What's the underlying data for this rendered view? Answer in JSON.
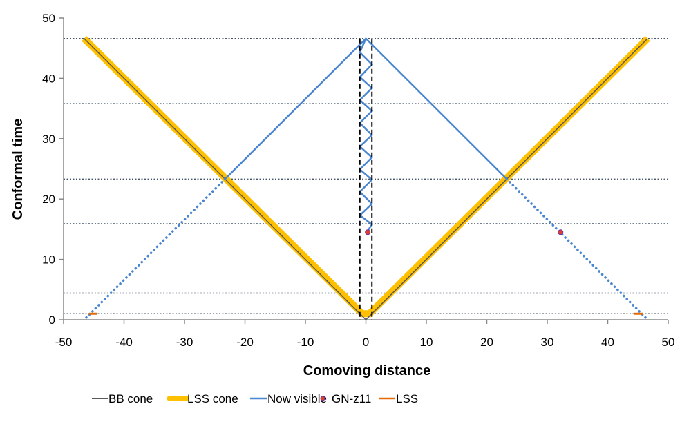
{
  "chart_data": {
    "type": "line",
    "title": "",
    "xlabel": "Comoving distance",
    "ylabel": "Conformal time",
    "xlim": [
      -50,
      50
    ],
    "ylim": [
      0,
      50
    ],
    "xticks": [
      -50,
      -40,
      -30,
      -20,
      -10,
      0,
      10,
      20,
      30,
      40,
      50
    ],
    "yticks": [
      0,
      10,
      20,
      30,
      40,
      50
    ],
    "grid": "none",
    "legend_position": "bottom",
    "horizontal_reference_lines": {
      "style": "dotted",
      "color": "#44546A",
      "y": [
        46.6,
        35.8,
        23.3,
        15.9,
        4.4,
        1.0
      ]
    },
    "vertical_reference_lines": {
      "style": "dashed",
      "color": "#000000",
      "x": [
        -1,
        1
      ]
    },
    "series": [
      {
        "name": "BB cone",
        "color": "#595959",
        "style": "solid",
        "x": [
          -46.6,
          0,
          46.6
        ],
        "y": [
          46.6,
          0,
          46.6
        ]
      },
      {
        "name": "LSS cone",
        "color": "#FFC000",
        "style": "thick",
        "x": [
          -46.6,
          -0.6,
          0.6,
          46.6
        ],
        "y": [
          46.6,
          1.0,
          1.0,
          46.6
        ]
      },
      {
        "name": "Now visible",
        "color": "#4A86D0",
        "style": "solid",
        "segments": [
          {
            "style": "solid",
            "x": [
              -23.3,
              0,
              23.3
            ],
            "y": [
              23.3,
              46.6,
              23.3
            ]
          },
          {
            "style": "dotted",
            "x": [
              -23.3,
              -46.6
            ],
            "y": [
              23.3,
              0
            ]
          },
          {
            "style": "dotted",
            "x": [
              23.3,
              46.6
            ],
            "y": [
              23.3,
              0
            ]
          },
          {
            "style": "solid",
            "x": [
              0,
              -1,
              1,
              -1,
              1,
              -1,
              1,
              -1,
              1,
              -1,
              1,
              -1,
              1,
              -1,
              1,
              -1,
              1,
              0.4
            ],
            "y": [
              46.6,
              44.3,
              42.3,
              40.2,
              38.4,
              36.4,
              34.6,
              32.6,
              30.6,
              28.7,
              26.9,
              24.9,
              23.2,
              21.2,
              19.2,
              17.3,
              15.8,
              14.9
            ]
          }
        ]
      },
      {
        "name": "GN-z11",
        "color": "#E0402A",
        "edge": "#7030A0",
        "style": "marker",
        "x": [
          0.3,
          32.2
        ],
        "y": [
          14.5,
          14.5
        ]
      },
      {
        "name": "LSS",
        "color": "#E36C09",
        "style": "solid",
        "segments": [
          {
            "x": [
              -45.8,
              -44.4
            ],
            "y": [
              1.0,
              1.0
            ]
          },
          {
            "x": [
              44.4,
              45.8
            ],
            "y": [
              1.0,
              1.0
            ]
          }
        ]
      }
    ]
  }
}
